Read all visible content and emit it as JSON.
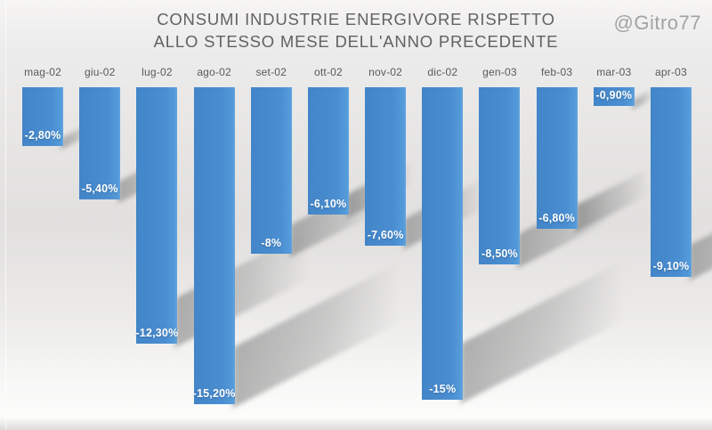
{
  "header": {
    "title_line1": "CONSUMI INDUSTRIE ENERGIVORE RISPETTO",
    "title_line2": "ALLO STESSO MESE DELL'ANNO PRECEDENTE",
    "watermark": "@Gitro77"
  },
  "chart_data": {
    "type": "bar",
    "title": "CONSUMI INDUSTRIE ENERGIVORE RISPETTO ALLO STESSO MESE DELL'ANNO PRECEDENTE",
    "categories": [
      "mag-02",
      "giu-02",
      "lug-02",
      "ago-02",
      "set-02",
      "ott-02",
      "nov-02",
      "dic-02",
      "gen-03",
      "feb-03",
      "mar-03",
      "apr-03"
    ],
    "values": [
      -2.8,
      -5.4,
      -12.3,
      -15.2,
      -8,
      -6.1,
      -7.6,
      -15,
      -8.5,
      -6.8,
      -0.9,
      -9.1
    ],
    "value_labels": [
      "-2,80%",
      "-5,40%",
      "-12,30%",
      "-15,20%",
      "-8%",
      "-6,10%",
      "-7,60%",
      "-15%",
      "-8,50%",
      "-6,80%",
      "-0,90%",
      "-9,10%"
    ],
    "xlabel": "",
    "ylabel": "",
    "ylim": [
      -16,
      0
    ],
    "x_axis_position": "top",
    "value_labels_position": "inside-end",
    "grid": false,
    "legend": false,
    "bar_color": "#4a8ed1",
    "value_label_color": "#ffffff",
    "category_label_color": "#595959",
    "title_color": "#626262",
    "watermark_color": "#a3a3a2",
    "background_color": "#e7e6e5"
  }
}
